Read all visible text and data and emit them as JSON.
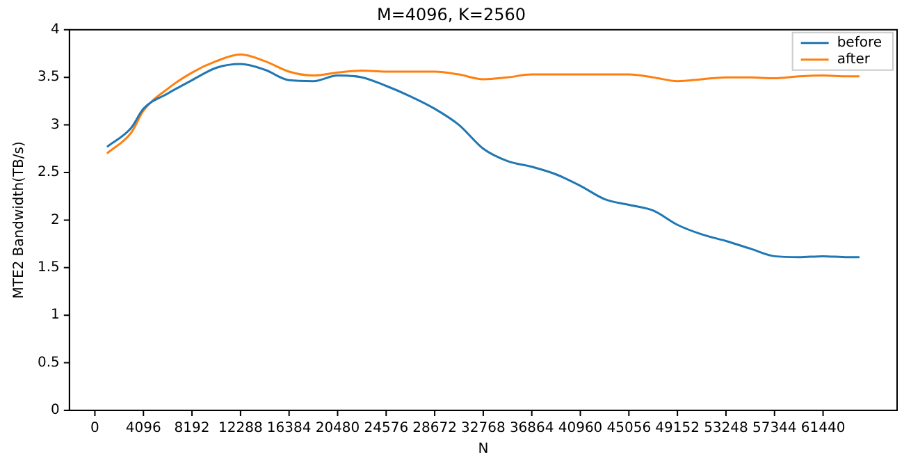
{
  "chart_data": {
    "type": "line",
    "title": "M=4096, K=2560",
    "xlabel": "N",
    "ylabel": "MTE2 Bandwidth(TB/s)",
    "x": [
      1024,
      3072,
      4096,
      6144,
      8192,
      10240,
      12288,
      14336,
      16384,
      18432,
      20480,
      22528,
      24576,
      26624,
      28672,
      30720,
      32768,
      34816,
      36864,
      38912,
      40960,
      43008,
      45056,
      47104,
      49152,
      51200,
      53248,
      55296,
      57344,
      59392,
      61440,
      63488,
      64512
    ],
    "series": [
      {
        "name": "before",
        "color": "#1f77b4",
        "values": [
          2.77,
          2.97,
          3.17,
          3.33,
          3.47,
          3.6,
          3.64,
          3.58,
          3.47,
          3.46,
          3.52,
          3.5,
          3.41,
          3.3,
          3.17,
          3.0,
          2.75,
          2.62,
          2.56,
          2.48,
          2.36,
          2.22,
          2.16,
          2.1,
          1.95,
          1.85,
          1.78,
          1.7,
          1.62,
          1.61,
          1.62,
          1.61,
          1.61
        ]
      },
      {
        "name": "after",
        "color": "#ff7f0e",
        "values": [
          2.7,
          2.92,
          3.15,
          3.38,
          3.55,
          3.67,
          3.74,
          3.67,
          3.56,
          3.52,
          3.55,
          3.57,
          3.56,
          3.56,
          3.56,
          3.53,
          3.48,
          3.5,
          3.53,
          3.53,
          3.53,
          3.53,
          3.53,
          3.5,
          3.46,
          3.48,
          3.5,
          3.5,
          3.49,
          3.51,
          3.52,
          3.51,
          3.51
        ]
      }
    ],
    "xlim": [
      -2150,
      67686
    ],
    "xticks": [
      0,
      4096,
      8192,
      12288,
      16384,
      20480,
      24576,
      28672,
      32768,
      36864,
      40960,
      45056,
      49152,
      53248,
      57344,
      61440
    ],
    "ylim": [
      0,
      4
    ],
    "yticks": [
      0,
      0.5,
      1,
      1.5,
      2,
      2.5,
      3,
      3.5,
      4
    ],
    "legend": "top right",
    "grid": false,
    "marker": "none",
    "line_style": "solid"
  }
}
